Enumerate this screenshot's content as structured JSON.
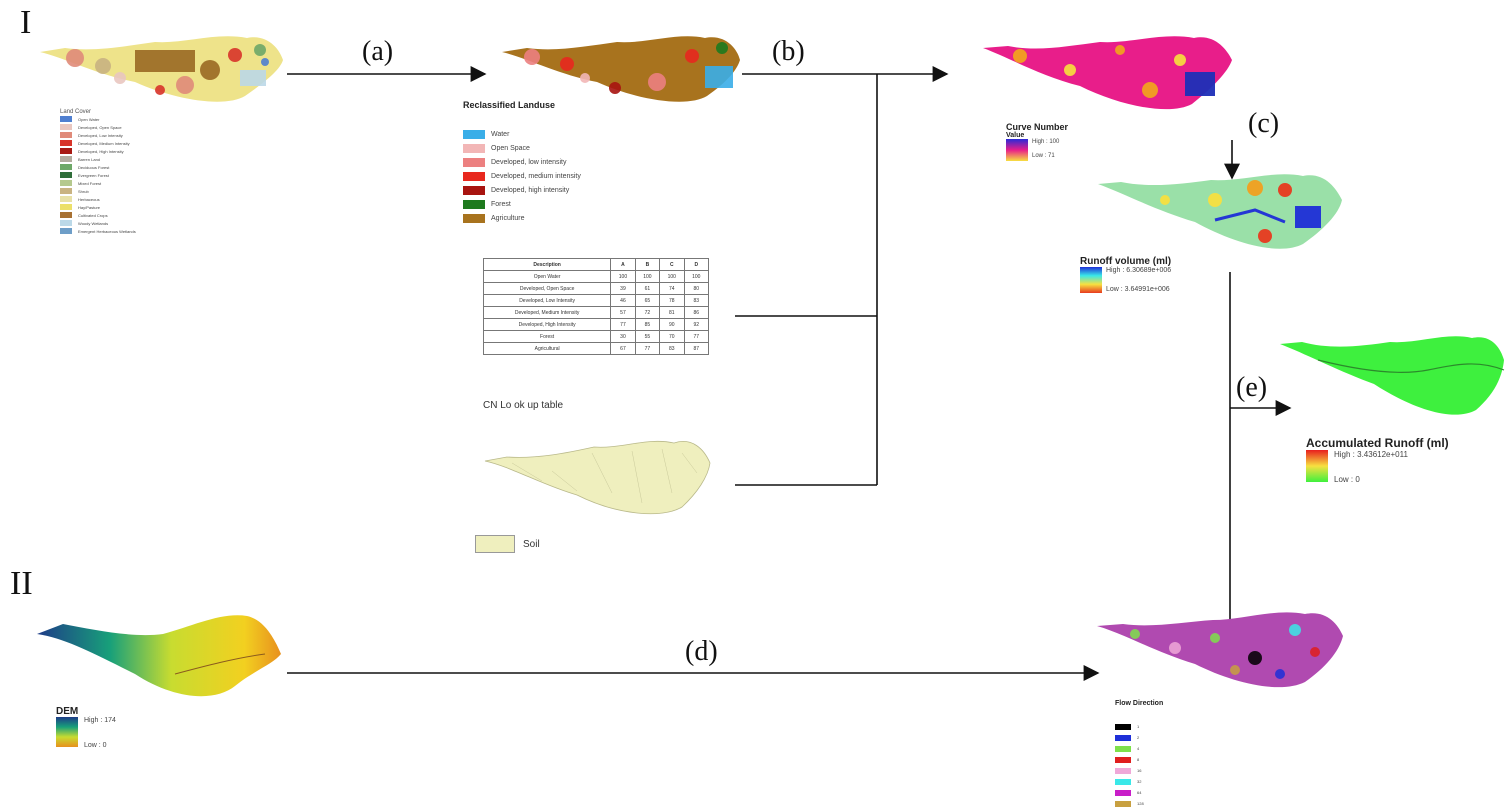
{
  "section_labels": {
    "one": "I",
    "two": "II"
  },
  "steps": {
    "a": "(a)",
    "b": "(b)",
    "c": "(c)",
    "d": "(d)",
    "e": "(e)"
  },
  "land_cover": {
    "title": "Land Cover",
    "items": [
      {
        "label": "Open Water",
        "color": "#4f7fd0"
      },
      {
        "label": "Developed, Open Space",
        "color": "#e9c7c0"
      },
      {
        "label": "Developed, Low Intensity",
        "color": "#e08b7a"
      },
      {
        "label": "Developed, Medium Intensity",
        "color": "#d8342a"
      },
      {
        "label": "Developed, High Intensity",
        "color": "#a81a14"
      },
      {
        "label": "Barren Land",
        "color": "#b3aca0"
      },
      {
        "label": "Deciduous Forest",
        "color": "#6ea868"
      },
      {
        "label": "Evergreen Forest",
        "color": "#2f6e3a"
      },
      {
        "label": "Mixed Forest",
        "color": "#b5c98e"
      },
      {
        "label": "Shrub",
        "color": "#c9b382"
      },
      {
        "label": "Herbaceous",
        "color": "#e8e1a8"
      },
      {
        "label": "Hay/Pasture",
        "color": "#ece06a"
      },
      {
        "label": "Cultivated Crops",
        "color": "#a87132"
      },
      {
        "label": "Woody Wetlands",
        "color": "#bcd9e8"
      },
      {
        "label": "Emergent Herbaceous Wetlands",
        "color": "#6e9ec8"
      }
    ]
  },
  "reclassified": {
    "title": "Reclassified Landuse",
    "items": [
      {
        "label": "Water",
        "color": "#3aaee8"
      },
      {
        "label": "Open Space",
        "color": "#f2b6b6"
      },
      {
        "label": "Developed, low intensity",
        "color": "#ec8080"
      },
      {
        "label": "Developed, medium intensity",
        "color": "#e8281e"
      },
      {
        "label": "Developed, high intensity",
        "color": "#a81410"
      },
      {
        "label": "Forest",
        "color": "#1e7a1e"
      },
      {
        "label": "Agriculture",
        "color": "#a8731e"
      }
    ]
  },
  "cn_table": {
    "headers": [
      "Description",
      "A",
      "B",
      "C",
      "D"
    ],
    "rows": [
      [
        "Open Water",
        "100",
        "100",
        "100",
        "100"
      ],
      [
        "Developed, Open Space",
        "39",
        "61",
        "74",
        "80"
      ],
      [
        "Developed, Low Intensity",
        "46",
        "65",
        "78",
        "83"
      ],
      [
        "Developed, Medium Intensity",
        "57",
        "72",
        "81",
        "86"
      ],
      [
        "Developed, High Intensity",
        "77",
        "85",
        "90",
        "92"
      ],
      [
        "Forest",
        "30",
        "55",
        "70",
        "77"
      ],
      [
        "Agricultural",
        "67",
        "77",
        "83",
        "87"
      ]
    ],
    "caption": "CN Lo ok up table"
  },
  "soil": {
    "label": "Soil",
    "color": "#efefbe"
  },
  "curve_number": {
    "title": "Curve Number",
    "subtitle": "Value",
    "high": "High : 100",
    "low": "Low : 71"
  },
  "runoff_volume": {
    "title": "Runoff volume (ml)",
    "high": "High : 6.30689e+006",
    "low": "Low : 3.64991e+006"
  },
  "accumulated_runoff": {
    "title": "Accumulated Runoff (ml)",
    "high": "High : 3.43612e+011",
    "low": "Low : 0"
  },
  "dem": {
    "title": "DEM",
    "high": "High : 174",
    "low": "Low : 0"
  },
  "flow_direction": {
    "title": "Flow Direction",
    "items": [
      {
        "label": "1",
        "color": "#000000"
      },
      {
        "label": "2",
        "color": "#1e2fd8"
      },
      {
        "label": "4",
        "color": "#7ee04a"
      },
      {
        "label": "8",
        "color": "#e01e1e"
      },
      {
        "label": "16",
        "color": "#f0a8d8"
      },
      {
        "label": "32",
        "color": "#3ae8e8"
      },
      {
        "label": "64",
        "color": "#c81ec8"
      },
      {
        "label": "128",
        "color": "#c8a040"
      }
    ]
  }
}
